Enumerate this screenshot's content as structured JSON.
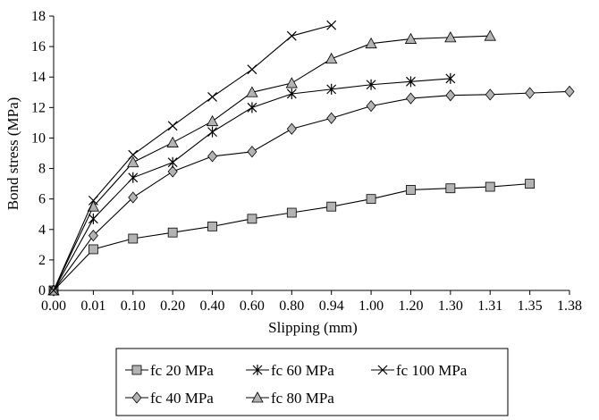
{
  "chart_data": {
    "type": "line",
    "title": "",
    "xlabel": "Slipping (mm)",
    "ylabel": "Bond stress (MPa)",
    "categories": [
      "0.00",
      "0.01",
      "0.10",
      "0.20",
      "0.40",
      "0.60",
      "0.80",
      "0.94",
      "1.00",
      "1.20",
      "1.30",
      "1.31",
      "1.35",
      "1.38"
    ],
    "ylim": [
      0,
      18
    ],
    "yticks": [
      "0",
      "2",
      "4",
      "6",
      "8",
      "10",
      "12",
      "14",
      "16",
      "18"
    ],
    "grid": false,
    "legend_position": "bottom",
    "series": [
      {
        "name": "fc 20 MPa",
        "marker": "square",
        "x": [
          "0.00",
          "0.01",
          "0.10",
          "0.20",
          "0.40",
          "0.60",
          "0.80",
          "0.94",
          "1.00",
          "1.20",
          "1.30",
          "1.31",
          "1.35"
        ],
        "values": [
          0,
          2.7,
          3.4,
          3.8,
          4.2,
          4.7,
          5.1,
          5.5,
          6.0,
          6.6,
          6.7,
          6.8,
          7.0
        ]
      },
      {
        "name": "fc 40 MPa",
        "marker": "diamond",
        "x": [
          "0.00",
          "0.01",
          "0.10",
          "0.20",
          "0.40",
          "0.60",
          "0.80",
          "0.94",
          "1.00",
          "1.20",
          "1.30",
          "1.31",
          "1.35",
          "1.38"
        ],
        "values": [
          0,
          3.6,
          6.1,
          7.8,
          8.8,
          9.1,
          10.6,
          11.3,
          12.1,
          12.6,
          12.8,
          12.85,
          12.95,
          13.05
        ]
      },
      {
        "name": "fc 60 MPa",
        "marker": "asterisk",
        "x": [
          "0.00",
          "0.01",
          "0.10",
          "0.20",
          "0.40",
          "0.60",
          "0.80",
          "0.94",
          "1.00",
          "1.20",
          "1.30"
        ],
        "values": [
          0,
          4.7,
          7.4,
          8.4,
          10.4,
          12.0,
          12.9,
          13.2,
          13.5,
          13.7,
          13.9
        ]
      },
      {
        "name": "fc 80 MPa",
        "marker": "triangle",
        "x": [
          "0.00",
          "0.01",
          "0.10",
          "0.20",
          "0.40",
          "0.60",
          "0.80",
          "0.94",
          "1.00",
          "1.20",
          "1.30",
          "1.31"
        ],
        "values": [
          0,
          5.5,
          8.4,
          9.7,
          11.1,
          13.0,
          13.6,
          15.2,
          16.2,
          16.5,
          16.6,
          16.7
        ]
      },
      {
        "name": "fc 100 MPa",
        "marker": "x",
        "x": [
          "0.00",
          "0.01",
          "0.10",
          "0.20",
          "0.40",
          "0.60",
          "0.80",
          "0.94"
        ],
        "values": [
          0,
          5.9,
          8.9,
          10.8,
          12.7,
          14.5,
          16.7,
          17.4
        ]
      }
    ],
    "colors": {
      "line": "#000000",
      "marker_fill": "#b3b3b3",
      "background": "#ffffff"
    }
  }
}
